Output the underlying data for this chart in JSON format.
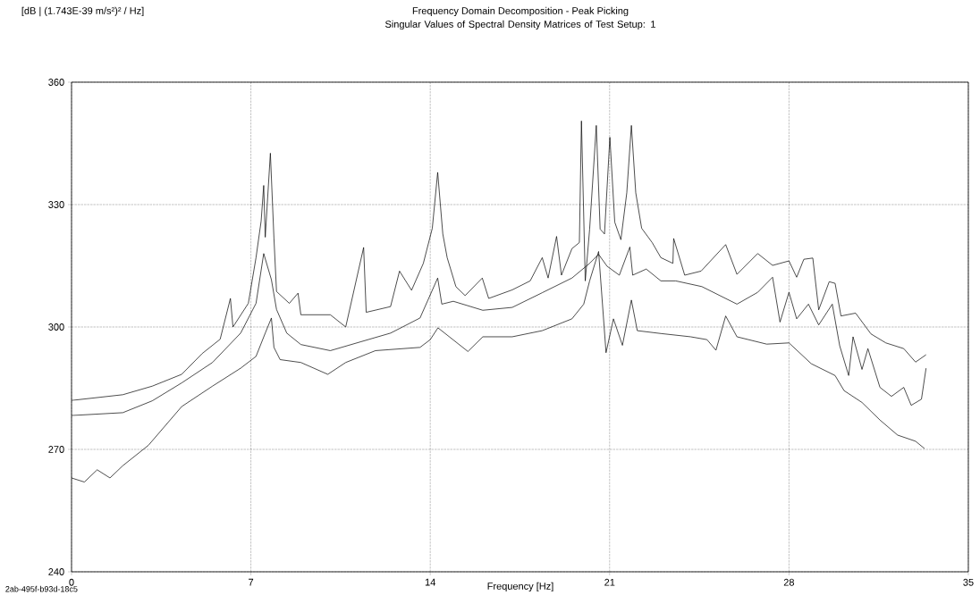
{
  "chart_data": {
    "type": "line",
    "title": "Frequency Domain Decomposition - Peak Picking",
    "subtitle": "Singular Values of Spectral Density Matrices of Test Setup: 1",
    "xlabel": "Frequency [Hz]",
    "annotations": [
      "[dB | (1.743E-39 m/s²)² / Hz]",
      "2ab-495f-b93d-18c5"
    ],
    "xlim": [
      0,
      35
    ],
    "ylim": [
      240,
      360
    ],
    "xticks": [
      0,
      7,
      14,
      21,
      28,
      35
    ],
    "yticks": [
      240,
      270,
      300,
      330,
      360
    ],
    "grid": true,
    "series": [
      {
        "color": "#000000",
        "x": [
          0,
          2.0,
          3.15,
          4.3,
          5.1,
          5.8,
          6.2,
          6.3,
          6.9,
          7.2,
          7.4,
          7.5,
          7.56,
          7.76,
          7.9,
          8.0,
          8.5,
          8.84,
          8.95,
          10.1,
          10.7,
          11.4,
          11.5,
          12.45,
          12.8,
          13.27,
          13.73,
          14.08,
          14.29,
          14.49,
          14.66,
          15.0,
          15.36,
          16.03,
          16.28,
          17.2,
          17.9,
          18.37,
          18.6,
          18.93,
          19.12,
          19.53,
          19.82,
          19.9,
          20.05,
          20.22,
          20.48,
          20.63,
          20.8,
          21.01,
          21.2,
          21.44,
          21.67,
          21.85,
          22.02,
          22.25,
          22.66,
          23.0,
          23.47,
          23.5,
          23.93,
          24.57,
          25.53,
          25.97,
          26.78,
          27.36,
          28.0,
          28.3,
          28.58,
          28.93,
          29.16,
          29.57,
          29.8,
          30.03,
          30.6,
          31.2,
          31.78,
          32.48,
          32.94,
          33.35
        ],
        "values": [
          282,
          283.4,
          285.5,
          288.4,
          293.5,
          297,
          307,
          300,
          305.8,
          317,
          326,
          334.7,
          322,
          342.6,
          321.7,
          308.7,
          305.8,
          308.3,
          303,
          303,
          300,
          319.5,
          303.6,
          305,
          313.7,
          309,
          315.6,
          324.2,
          337.9,
          322.8,
          317,
          309.9,
          307.7,
          312,
          307,
          309.1,
          311.3,
          317,
          312,
          322.2,
          312.7,
          319.2,
          320.7,
          350.5,
          311.3,
          324,
          349.4,
          324,
          322.8,
          346.5,
          325.7,
          321.4,
          332.9,
          349.4,
          332.9,
          324.2,
          320.7,
          317,
          315.6,
          321.7,
          312.7,
          313.7,
          320.2,
          312.9,
          318,
          315.1,
          316.2,
          312.2,
          316.6,
          316.9,
          304.2,
          311.1,
          310.7,
          302.7,
          303.4,
          298.3,
          296.1,
          294.7,
          291.4,
          293.2
        ]
      },
      {
        "color": "#000000",
        "x": [
          0,
          2.0,
          3.15,
          4.3,
          5.5,
          6.6,
          7.2,
          7.5,
          7.8,
          8.0,
          8.4,
          8.95,
          10.1,
          11.3,
          12.45,
          13.6,
          14.29,
          14.45,
          14.9,
          16.05,
          17.2,
          18.37,
          19.53,
          20.22,
          20.57,
          20.9,
          21.38,
          21.79,
          21.9,
          22.43,
          23.0,
          23.58,
          24.6,
          25.97,
          26.78,
          27.36,
          27.65,
          28.0,
          28.3,
          28.76,
          29.16,
          29.69,
          29.98,
          30.33,
          30.5,
          30.85,
          31.08,
          31.55,
          32.0,
          32.48,
          32.77,
          33.17,
          33.35
        ],
        "values": [
          278.3,
          279,
          281.9,
          286.3,
          291.3,
          298.5,
          305.8,
          318,
          311.6,
          304.3,
          298.5,
          295.7,
          294.2,
          296.4,
          298.5,
          302.2,
          312,
          305.6,
          306.3,
          304.1,
          304.8,
          308.4,
          312,
          315.6,
          317.8,
          314.9,
          312.7,
          319.6,
          312.7,
          314.2,
          311.3,
          311.3,
          309.9,
          305.6,
          308.5,
          312.2,
          301.2,
          308.5,
          302,
          305.6,
          300.5,
          305.6,
          295.4,
          288.1,
          297.6,
          289.6,
          294.7,
          285.2,
          283,
          285.2,
          280.8,
          282.3,
          289.9
        ]
      },
      {
        "color": "#000000",
        "x": [
          0,
          0.5,
          1,
          1.5,
          2,
          3,
          4.3,
          5.5,
          6.6,
          7.2,
          7.56,
          7.8,
          7.9,
          8.14,
          8.95,
          10.0,
          10.7,
          11.86,
          13.6,
          14.0,
          14.3,
          15.47,
          16.05,
          17.2,
          18.37,
          19.53,
          19.99,
          20.22,
          20.57,
          20.86,
          21.15,
          21.5,
          21.85,
          22.08,
          23.0,
          24.16,
          24.8,
          25.15,
          25.53,
          25.97,
          27.13,
          28.0,
          28.87,
          29.8,
          30.15,
          30.85,
          31.55,
          32.24,
          32.94,
          33.29
        ],
        "values": [
          263,
          262,
          265,
          263,
          266,
          271,
          280.5,
          285.5,
          289.9,
          292.8,
          298.5,
          302.2,
          295,
          292,
          291.3,
          288.4,
          291.3,
          294.2,
          295,
          296.9,
          299.8,
          294,
          297.6,
          297.6,
          299.1,
          302,
          305.6,
          311.3,
          318.5,
          293.7,
          302,
          295.5,
          306.6,
          299.1,
          298.4,
          297.6,
          296.9,
          294.3,
          302.7,
          297.6,
          295.8,
          296.1,
          291,
          288.1,
          284.4,
          281.5,
          277.2,
          273.5,
          272,
          270.2
        ]
      }
    ]
  }
}
